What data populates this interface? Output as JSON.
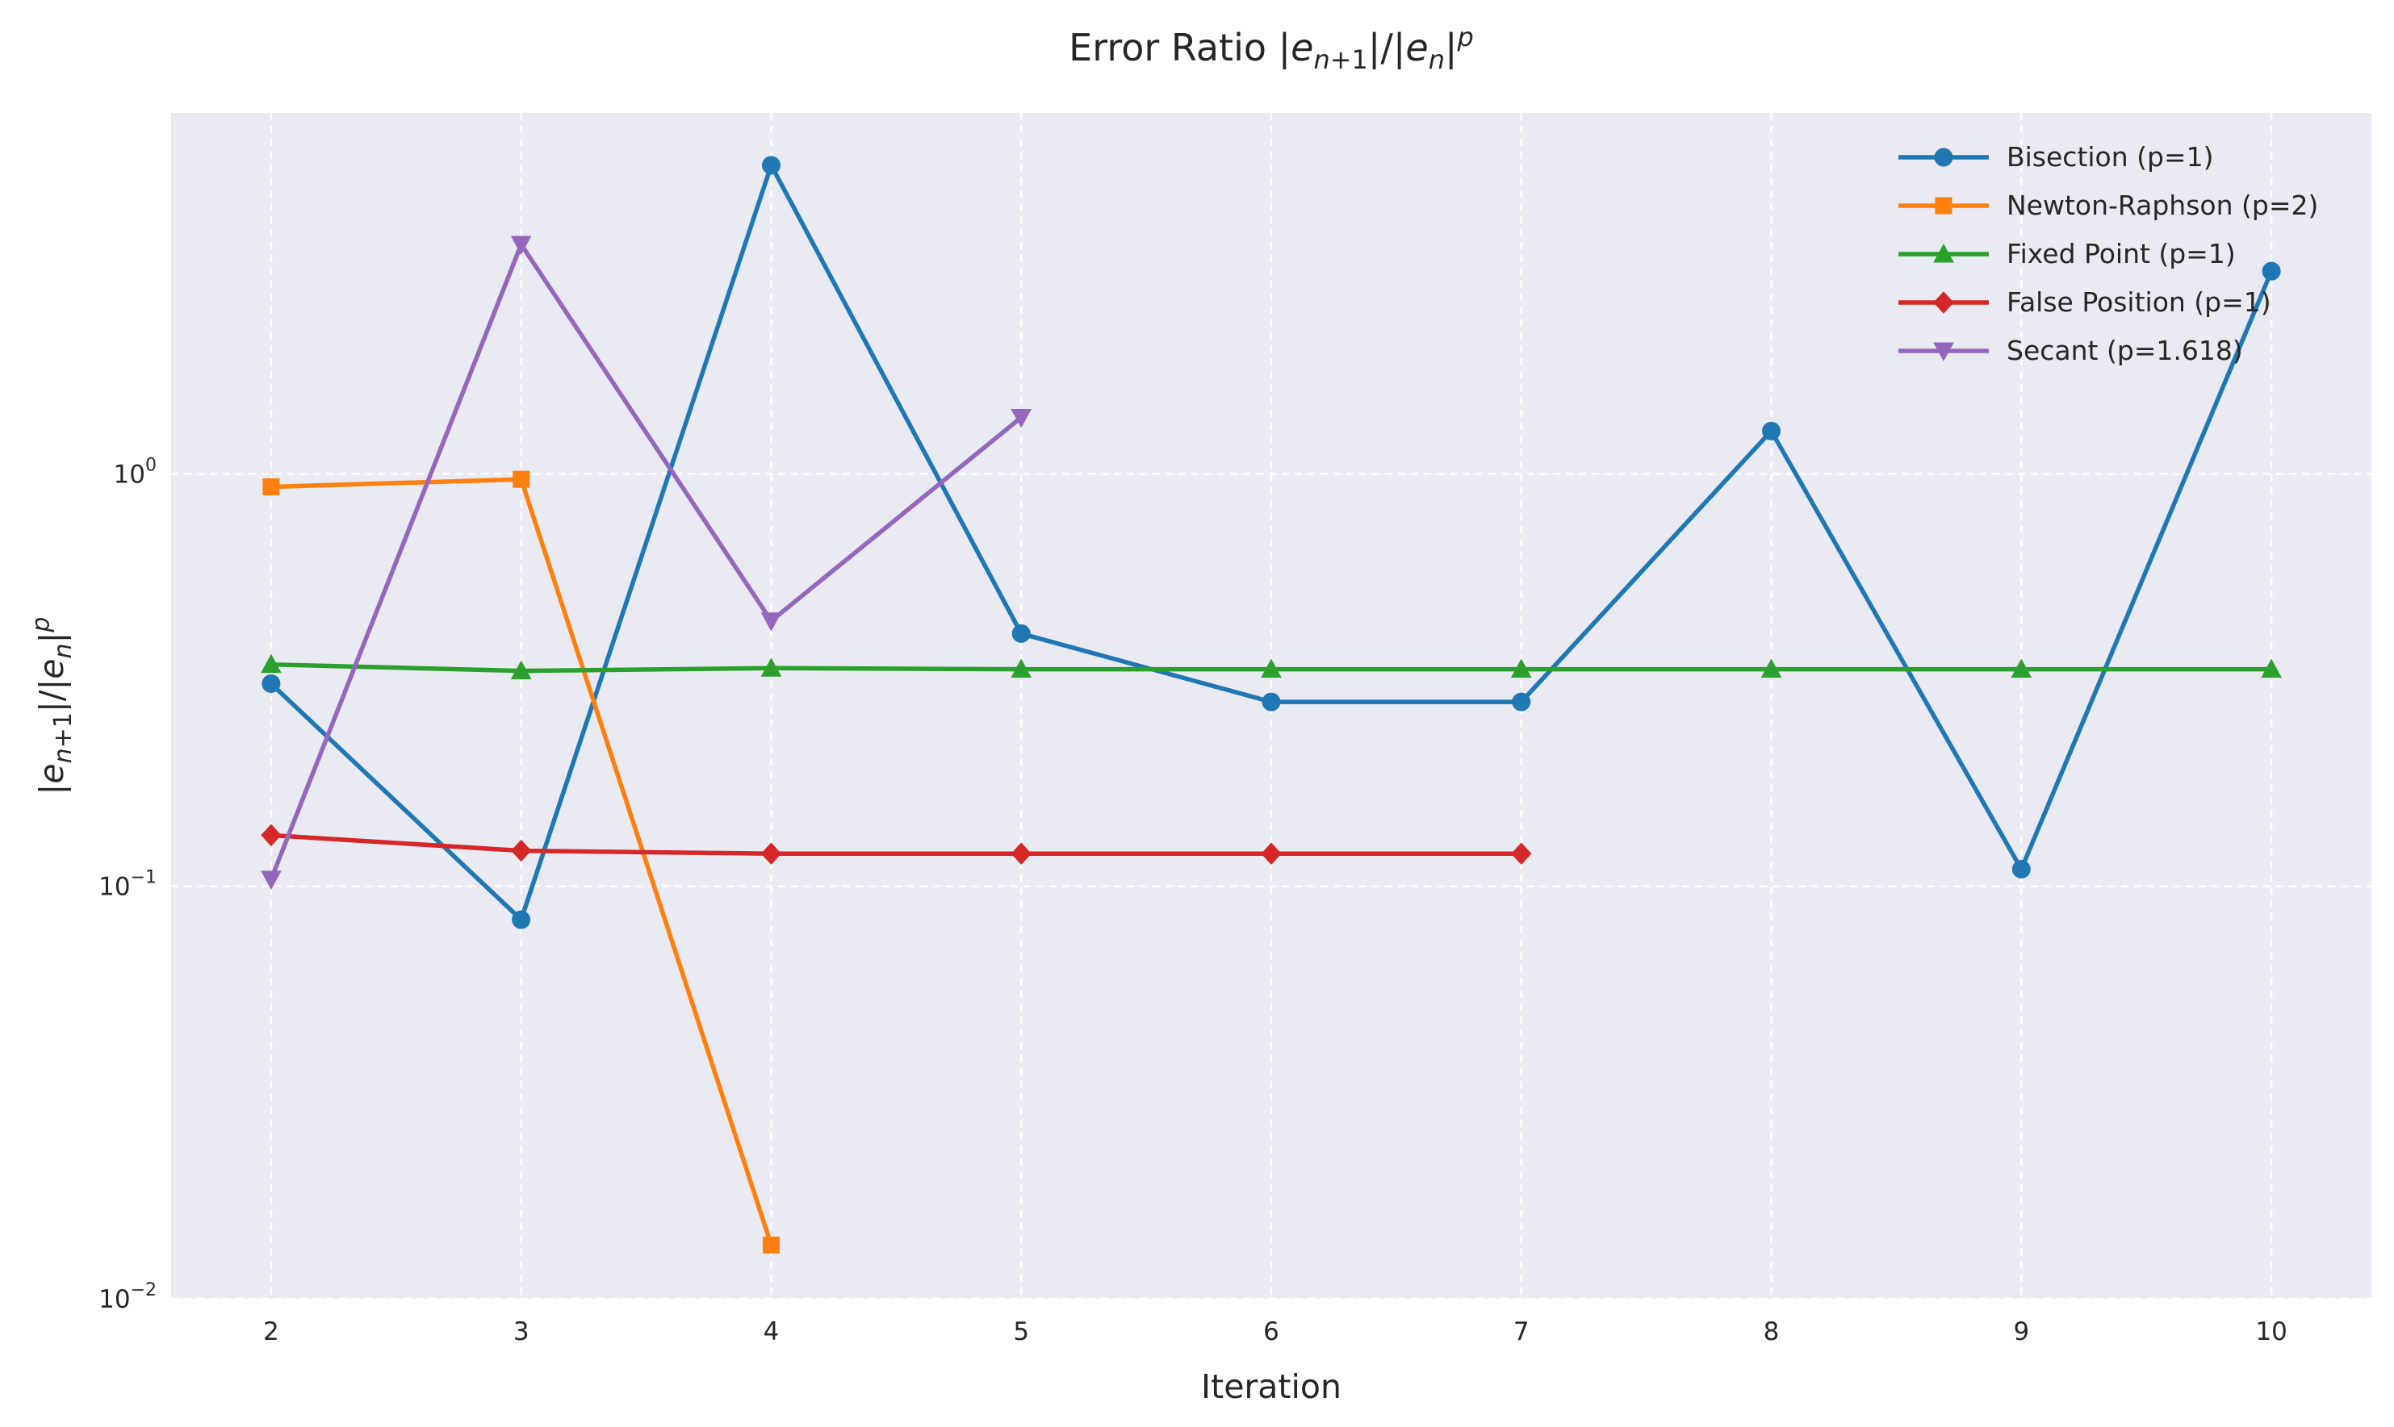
{
  "chart_data": {
    "type": "line",
    "title": "Error Ratio |e_{n+1}|/|e_n|^p",
    "xlabel": "Iteration",
    "ylabel": "|e_{n+1}|/|e_n|^p",
    "y_scale": "log",
    "xlim": [
      1.6,
      10.4
    ],
    "ylim": [
      0.01,
      7.5
    ],
    "x_ticks": [
      2,
      3,
      4,
      5,
      6,
      7,
      8,
      9,
      10
    ],
    "y_ticks": [
      {
        "value": 0.01,
        "base": "10",
        "exp": "−2"
      },
      {
        "value": 0.1,
        "base": "10",
        "exp": "−1"
      },
      {
        "value": 1,
        "base": "10",
        "exp": "0"
      }
    ],
    "grid": true,
    "legend_position": "top-right",
    "series": [
      {
        "name": "Bisection (p=1)",
        "color": "#1f77b4",
        "marker": "circle",
        "x": [
          2,
          3,
          4,
          5,
          6,
          7,
          8,
          9,
          10
        ],
        "y": [
          0.31,
          0.083,
          5.6,
          0.41,
          0.28,
          0.28,
          1.27,
          0.11,
          3.1
        ]
      },
      {
        "name": "Newton-Raphson (p=2)",
        "color": "#ff7f0e",
        "marker": "square",
        "x": [
          2,
          3,
          4
        ],
        "y": [
          0.93,
          0.97,
          0.0135
        ]
      },
      {
        "name": "Fixed Point (p=1)",
        "color": "#2ca02c",
        "marker": "triangle-up",
        "x": [
          2,
          3,
          4,
          5,
          6,
          7,
          8,
          9,
          10
        ],
        "y": [
          0.345,
          0.333,
          0.338,
          0.336,
          0.336,
          0.336,
          0.336,
          0.336,
          0.336
        ]
      },
      {
        "name": "False Position (p=1)",
        "color": "#d62728",
        "marker": "diamond",
        "x": [
          2,
          3,
          4,
          5,
          6,
          7
        ],
        "y": [
          0.133,
          0.122,
          0.12,
          0.12,
          0.12,
          0.12
        ]
      },
      {
        "name": "Secant (p=1.618)",
        "color": "#9467bd",
        "marker": "triangle-down",
        "x": [
          2,
          3,
          4,
          5
        ],
        "y": [
          0.104,
          3.6,
          0.44,
          1.37
        ]
      }
    ]
  }
}
